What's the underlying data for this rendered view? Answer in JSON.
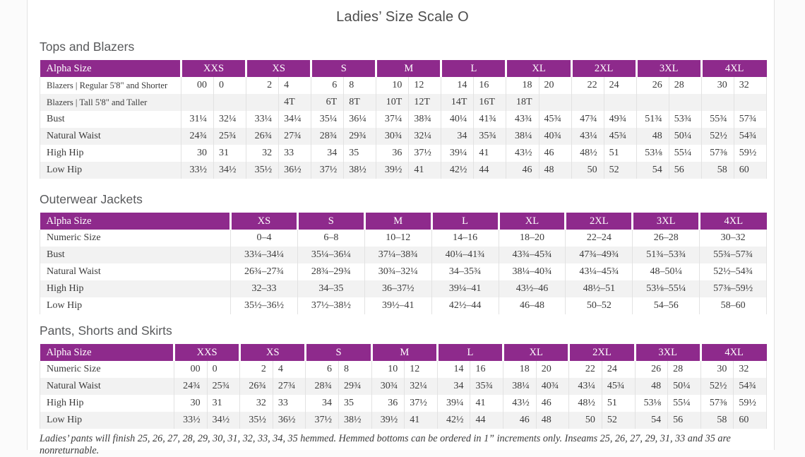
{
  "page": {
    "title": "Ladies’ Size Scale O"
  },
  "tables": [
    {
      "heading": "Tops and Blazers",
      "type": "paired",
      "header_label": "Alpha Size",
      "groups": [
        "XXS",
        "XS",
        "S",
        "M",
        "L",
        "XL",
        "2XL",
        "3XL",
        "4XL"
      ],
      "rows": [
        {
          "label": "Blazers | Regular 5'8\" and Shorter",
          "values": [
            "00",
            "0",
            "2",
            "4",
            "6",
            "8",
            "10",
            "12",
            "14",
            "16",
            "18",
            "20",
            "22",
            "24",
            "26",
            "28",
            "30",
            "32"
          ]
        },
        {
          "label": "Blazers | Tall 5'8\" and Taller",
          "values": [
            "",
            "",
            "",
            "4T",
            "6T",
            "8T",
            "10T",
            "12T",
            "14T",
            "16T",
            "18T",
            "",
            "",
            "",
            "",
            "",
            "",
            ""
          ]
        },
        {
          "label": "Bust",
          "values": [
            "31¼",
            "32¼",
            "33¼",
            "34¼",
            "35¼",
            "36¼",
            "37¼",
            "38¾",
            "40¼",
            "41¾",
            "43¾",
            "45¾",
            "47¾",
            "49¾",
            "51¾",
            "53¾",
            "55¾",
            "57¾"
          ]
        },
        {
          "label": "Natural Waist",
          "values": [
            "24¾",
            "25¾",
            "26¾",
            "27¾",
            "28¾",
            "29¾",
            "30¾",
            "32¼",
            "34",
            "35¾",
            "38¼",
            "40¾",
            "43¼",
            "45¾",
            "48",
            "50¼",
            "52½",
            "54¾"
          ]
        },
        {
          "label": "High Hip",
          "values": [
            "30",
            "31",
            "32",
            "33",
            "34",
            "35",
            "36",
            "37½",
            "39¼",
            "41",
            "43½",
            "46",
            "48½",
            "51",
            "53⅛",
            "55¼",
            "57⅜",
            "59½"
          ]
        },
        {
          "label": "Low Hip",
          "values": [
            "33½",
            "34½",
            "35½",
            "36½",
            "37½",
            "38½",
            "39½",
            "41",
            "42½",
            "44",
            "46",
            "48",
            "50",
            "52",
            "54",
            "56",
            "58",
            "60"
          ]
        }
      ]
    },
    {
      "heading": "Outerwear Jackets",
      "type": "single",
      "header_label": "Alpha Size",
      "groups": [
        "XS",
        "S",
        "M",
        "L",
        "XL",
        "2XL",
        "3XL",
        "4XL"
      ],
      "rows": [
        {
          "label": "Numeric Size",
          "values": [
            "0–4",
            "6–8",
            "10–12",
            "14–16",
            "18–20",
            "22–24",
            "26–28",
            "30–32"
          ]
        },
        {
          "label": "Bust",
          "values": [
            "33¼–34¼",
            "35¼–36¼",
            "37¼–38¾",
            "40¼–41¾",
            "43¾–45¾",
            "47¾–49¾",
            "51¾–53¾",
            "55¾–57¾"
          ]
        },
        {
          "label": "Natural Waist",
          "values": [
            "26¾–27¾",
            "28¾–29¾",
            "30¾–32¼",
            "34–35¾",
            "38¼–40¾",
            "43¼–45¾",
            "48–50¼",
            "52½–54¾"
          ]
        },
        {
          "label": "High Hip",
          "values": [
            "32–33",
            "34–35",
            "36–37½",
            "39¼–41",
            "43½–46",
            "48½–51",
            "53⅛–55¼",
            "57⅜–59½"
          ]
        },
        {
          "label": "Low Hip",
          "values": [
            "35½–36½",
            "37½–38½",
            "39½–41",
            "42½–44",
            "46–48",
            "50–52",
            "54–56",
            "58–60"
          ]
        }
      ]
    },
    {
      "heading": "Pants, Shorts and Skirts",
      "type": "paired",
      "header_label": "Alpha Size",
      "groups": [
        "XXS",
        "XS",
        "S",
        "M",
        "L",
        "XL",
        "2XL",
        "3XL",
        "4XL"
      ],
      "rows": [
        {
          "label": "Numeric Size",
          "values": [
            "00",
            "0",
            "2",
            "4",
            "6",
            "8",
            "10",
            "12",
            "14",
            "16",
            "18",
            "20",
            "22",
            "24",
            "26",
            "28",
            "30",
            "32"
          ]
        },
        {
          "label": "Natural Waist",
          "values": [
            "24¾",
            "25¾",
            "26¾",
            "27¾",
            "28¾",
            "29¾",
            "30¾",
            "32¼",
            "34",
            "35¾",
            "38¼",
            "40¾",
            "43¼",
            "45¾",
            "48",
            "50¼",
            "52½",
            "54¾"
          ]
        },
        {
          "label": "High Hip",
          "values": [
            "30",
            "31",
            "32",
            "33",
            "34",
            "35",
            "36",
            "37½",
            "39¼",
            "41",
            "43½",
            "46",
            "48½",
            "51",
            "53⅛",
            "55¼",
            "57⅜",
            "59½"
          ]
        },
        {
          "label": "Low Hip",
          "values": [
            "33½",
            "34½",
            "35½",
            "36½",
            "37½",
            "38½",
            "39½",
            "41",
            "42½",
            "44",
            "46",
            "48",
            "50",
            "52",
            "54",
            "56",
            "58",
            "60"
          ]
        }
      ]
    }
  ],
  "footnote": "Ladies’ pants will finish 25, 26, 27, 28, 29, 30, 31, 32, 33, 34, 35 hemmed. Hemmed bottoms can be ordered in 1” increments only. Inseams 25, 26, 27, 29, 31, 33 and 35 are nonreturnable.",
  "colors": {
    "header_purple": "#8e2a8c",
    "stripe": "#f2f2f2"
  }
}
